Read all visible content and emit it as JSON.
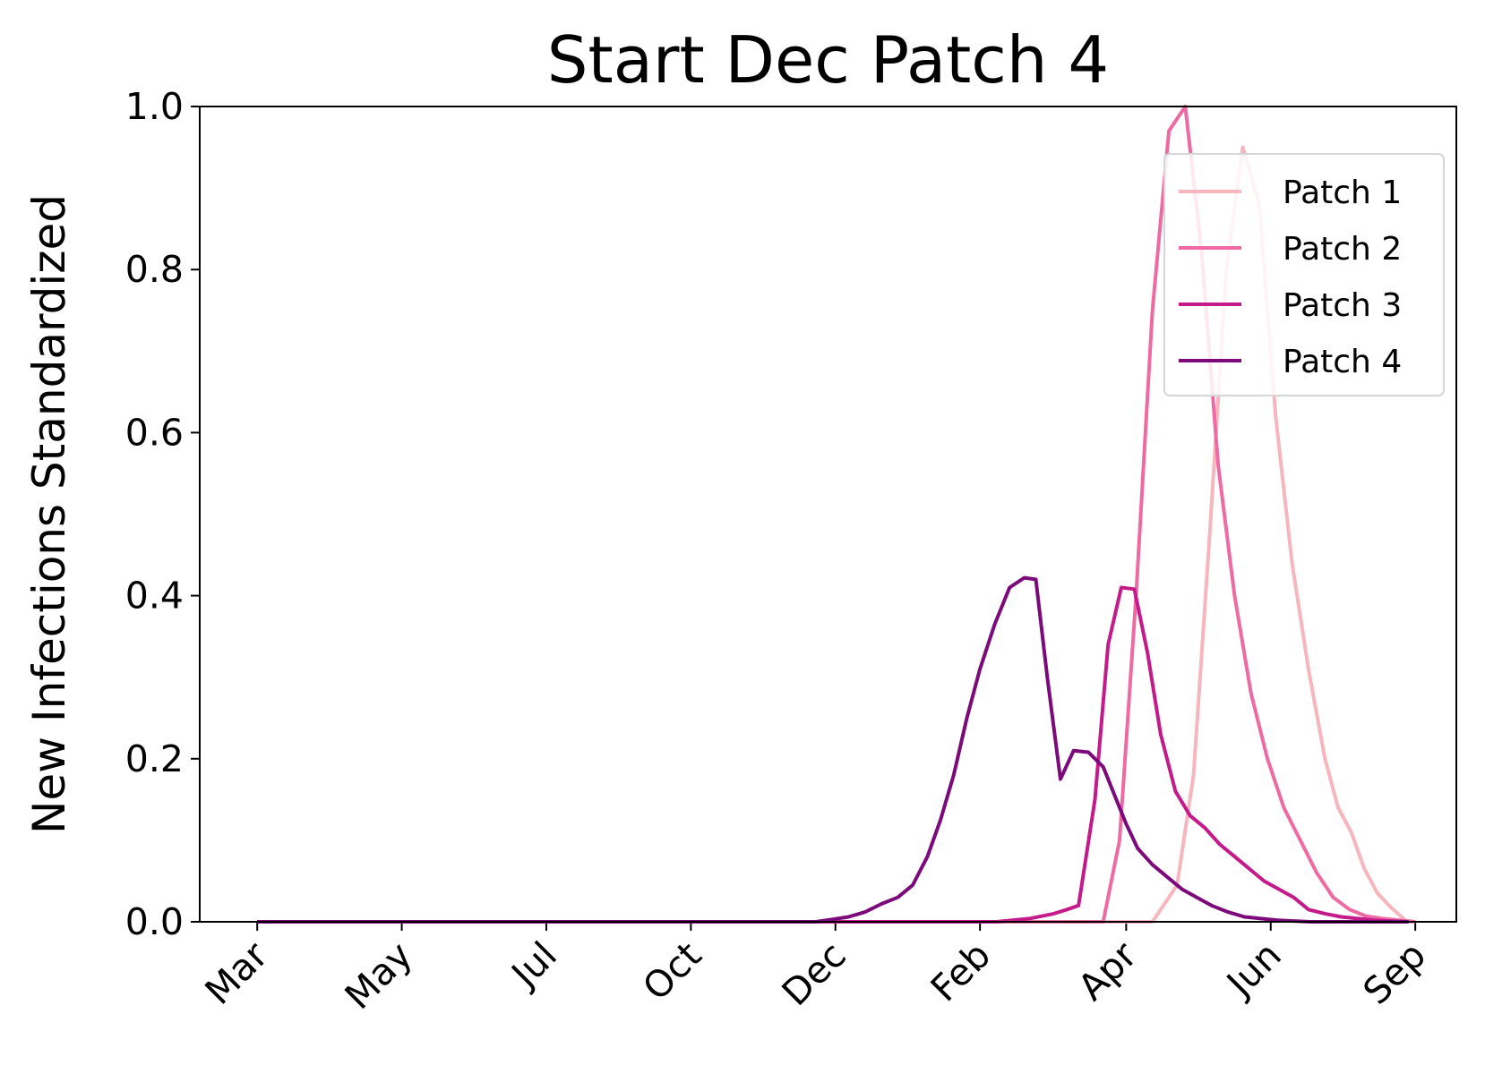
{
  "chart_data": {
    "type": "line",
    "title": "Start Dec Patch 4",
    "xlabel": "",
    "ylabel": "New Infections Standardized",
    "ylim": [
      0,
      1
    ],
    "yticks": [
      "0.0",
      "0.2",
      "0.4",
      "0.6",
      "0.8",
      "1.0"
    ],
    "x_tick_labels": [
      "Mar",
      "May",
      "Jul",
      "Oct",
      "Dec",
      "Feb",
      "Apr",
      "Jun",
      "Sep"
    ],
    "x_unit": "weeks from start",
    "x_tick_positions": [
      0,
      8.8,
      17.6,
      26.4,
      35.2,
      44.0,
      52.9,
      61.7,
      70.5
    ],
    "xlim": [
      -3.5,
      73
    ],
    "grid": false,
    "legend_position": "upper right",
    "series": [
      {
        "name": "Patch 1",
        "color": "#f7b5bd",
        "x": [
          0,
          54.5,
          56,
          57,
          58,
          59,
          60,
          61,
          62,
          63,
          64,
          65,
          65.8,
          66.6,
          67.4,
          68.2,
          69,
          70
        ],
        "y": [
          0,
          0,
          0.045,
          0.18,
          0.48,
          0.8,
          0.95,
          0.88,
          0.62,
          0.44,
          0.31,
          0.2,
          0.14,
          0.11,
          0.065,
          0.035,
          0.018,
          0
        ]
      },
      {
        "name": "Patch 2",
        "color": "#ef6aa3",
        "x": [
          0,
          51.5,
          52.5,
          53.5,
          54.5,
          55.5,
          56.5,
          57.5,
          58.5,
          59.5,
          60.5,
          61.5,
          62.5,
          63.5,
          64.5,
          65.5,
          66.5,
          67.5,
          68.5,
          69.5,
          70.5
        ],
        "y": [
          0,
          0,
          0.1,
          0.4,
          0.75,
          0.97,
          1.0,
          0.82,
          0.56,
          0.4,
          0.28,
          0.2,
          0.14,
          0.1,
          0.06,
          0.03,
          0.015,
          0.007,
          0.004,
          0.002,
          0
        ]
      },
      {
        "name": "Patch 3",
        "color": "#c41a8a",
        "x": [
          0,
          45,
          47,
          48.5,
          49.3,
          50,
          51,
          51.8,
          52.6,
          53.4,
          54.2,
          55,
          55.9,
          56.8,
          57.7,
          58.6,
          59.5,
          60.4,
          61.3,
          62.2,
          63.1,
          64,
          65,
          66,
          67,
          68,
          69,
          70
        ],
        "y": [
          0,
          0,
          0.004,
          0.01,
          0.015,
          0.02,
          0.15,
          0.34,
          0.41,
          0.408,
          0.33,
          0.23,
          0.16,
          0.13,
          0.115,
          0.095,
          0.08,
          0.065,
          0.05,
          0.04,
          0.03,
          0.015,
          0.01,
          0.006,
          0.004,
          0.002,
          0.001,
          0
        ]
      },
      {
        "name": "Patch 4",
        "color": "#7c0a7a",
        "x": [
          0,
          34,
          35,
          36,
          37,
          38,
          39,
          39.9,
          40.8,
          41.6,
          42.4,
          43.2,
          44.0,
          44.9,
          45.8,
          46.7,
          47.4,
          48.1,
          48.9,
          49.7,
          50.6,
          51.5,
          52.2,
          52.9,
          53.6,
          54.5,
          55.4,
          56.3,
          57.2,
          58.1,
          59.1,
          60.1,
          61.1,
          62.1,
          63.1,
          64.1,
          65.1,
          66.1,
          67.1,
          68.1,
          69.1,
          70.1
        ],
        "y": [
          0,
          0,
          0.003,
          0.006,
          0.012,
          0.022,
          0.03,
          0.045,
          0.08,
          0.125,
          0.18,
          0.25,
          0.31,
          0.365,
          0.41,
          0.422,
          0.42,
          0.3,
          0.175,
          0.21,
          0.208,
          0.19,
          0.155,
          0.12,
          0.09,
          0.07,
          0.055,
          0.04,
          0.03,
          0.02,
          0.012,
          0.006,
          0.004,
          0.002,
          0.001,
          0,
          0,
          0,
          0,
          0,
          0,
          0
        ]
      }
    ]
  }
}
